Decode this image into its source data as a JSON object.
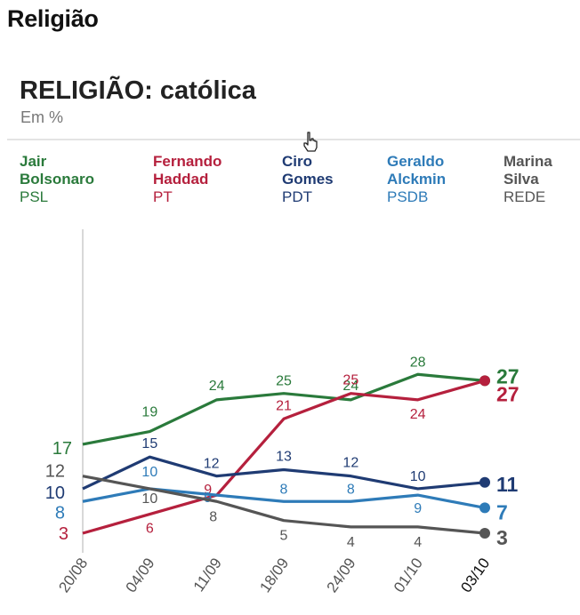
{
  "page": {
    "heading": "Religião"
  },
  "legend": [
    {
      "name": "Jair\nBolsonaro",
      "party": "PSL",
      "color": "#2a7a3b"
    },
    {
      "name": "Fernando\nHaddad",
      "party": "PT",
      "color": "#b5203d"
    },
    {
      "name": "Ciro\nGomes",
      "party": "PDT",
      "color": "#1f3b73"
    },
    {
      "name": "Geraldo\nAlckmin",
      "party": "PSDB",
      "color": "#2e7bb8"
    },
    {
      "name": "Marina\nSilva",
      "party": "REDE",
      "color": "#555555"
    }
  ],
  "chart_data": {
    "type": "line",
    "title": "RELIGIÃO: católica",
    "subtitle": "Em %",
    "categories": [
      "20/08",
      "04/09",
      "11/09",
      "18/09",
      "24/09",
      "01/10",
      "03/10"
    ],
    "ylim": [
      0,
      32
    ],
    "series": [
      {
        "name": "Jair Bolsonaro",
        "color": "#2a7a3b",
        "values": [
          17,
          19,
          24,
          25,
          24,
          28,
          27
        ]
      },
      {
        "name": "Fernando Haddad",
        "color": "#b5203d",
        "values": [
          3,
          6,
          9,
          21,
          25,
          24,
          27
        ]
      },
      {
        "name": "Ciro Gomes",
        "color": "#1f3b73",
        "values": [
          10,
          15,
          12,
          13,
          12,
          10,
          11
        ]
      },
      {
        "name": "Geraldo Alckmin",
        "color": "#2e7bb8",
        "values": [
          8,
          10,
          9,
          8,
          8,
          9,
          7
        ]
      },
      {
        "name": "Marina Silva",
        "color": "#555555",
        "values": [
          12,
          10,
          8,
          5,
          4,
          4,
          3
        ]
      }
    ]
  }
}
